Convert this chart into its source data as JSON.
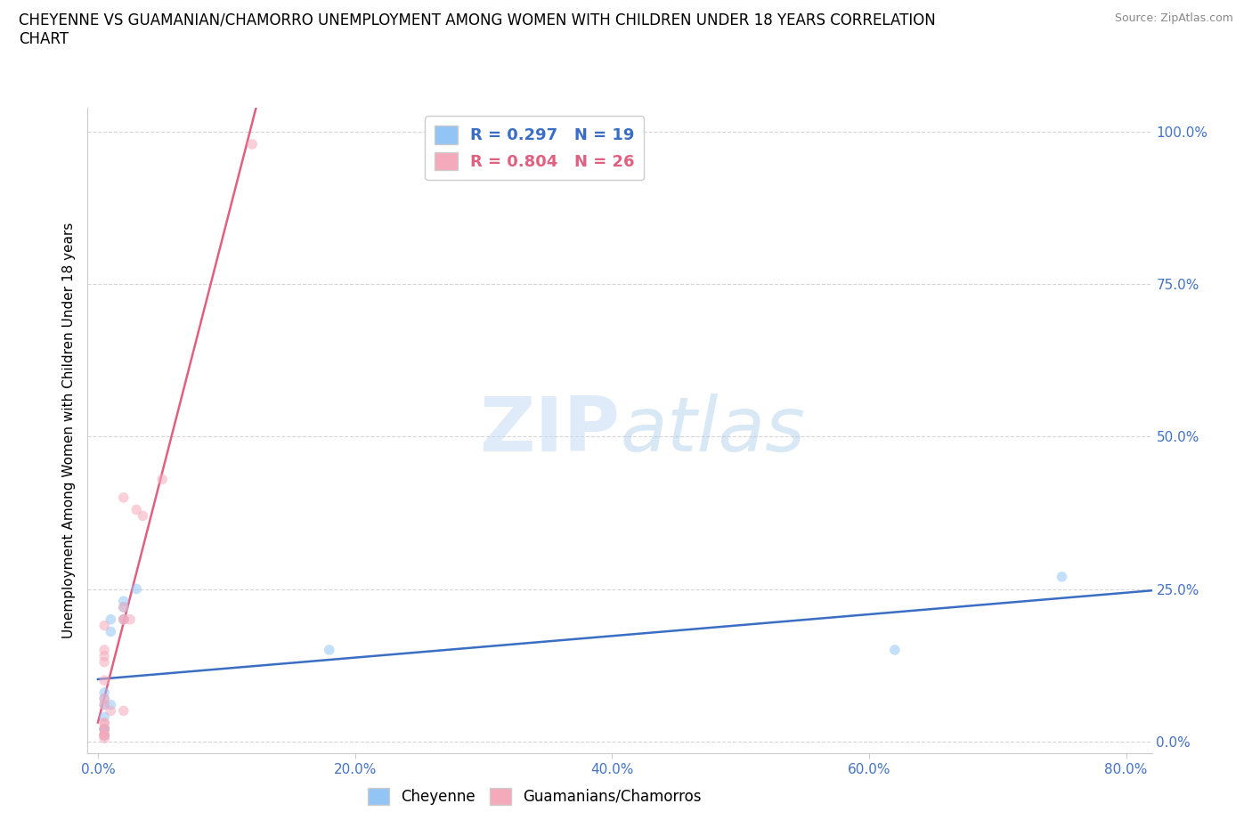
{
  "title_line1": "CHEYENNE VS GUAMANIAN/CHAMORRO UNEMPLOYMENT AMONG WOMEN WITH CHILDREN UNDER 18 YEARS CORRELATION",
  "title_line2": "CHART",
  "source": "Source: ZipAtlas.com",
  "ylabel": "Unemployment Among Women with Children Under 18 years",
  "cheyenne_x": [
    0.005,
    0.005,
    0.005,
    0.005,
    0.005,
    0.005,
    0.005,
    0.005,
    0.005,
    0.01,
    0.01,
    0.01,
    0.02,
    0.02,
    0.02,
    0.03,
    0.18,
    0.62,
    0.75
  ],
  "cheyenne_y": [
    0.02,
    0.02,
    0.04,
    0.06,
    0.07,
    0.08,
    0.02,
    0.01,
    0.01,
    0.2,
    0.18,
    0.06,
    0.2,
    0.22,
    0.23,
    0.25,
    0.15,
    0.15,
    0.27
  ],
  "guamanian_x": [
    0.005,
    0.005,
    0.005,
    0.005,
    0.005,
    0.005,
    0.005,
    0.005,
    0.005,
    0.005,
    0.005,
    0.005,
    0.005,
    0.005,
    0.005,
    0.01,
    0.02,
    0.02,
    0.02,
    0.02,
    0.02,
    0.025,
    0.03,
    0.035,
    0.05,
    0.12
  ],
  "guamanian_y": [
    0.005,
    0.01,
    0.01,
    0.01,
    0.02,
    0.02,
    0.03,
    0.03,
    0.06,
    0.07,
    0.1,
    0.13,
    0.14,
    0.15,
    0.19,
    0.05,
    0.05,
    0.2,
    0.2,
    0.22,
    0.4,
    0.2,
    0.38,
    0.37,
    0.43,
    0.98
  ],
  "cheyenne_color": "#92C5F5",
  "guamanian_color": "#F5AABB",
  "trend_cheyenne_color": "#3A6EC4",
  "trend_guamanian_color": "#E06080",
  "cheyenne_R": 0.297,
  "cheyenne_N": 19,
  "guamanian_R": 0.804,
  "guamanian_N": 26,
  "xlim": [
    -0.008,
    0.82
  ],
  "ylim": [
    -0.02,
    1.04
  ],
  "xticks": [
    0.0,
    0.2,
    0.4,
    0.6,
    0.8
  ],
  "yticks": [
    0.0,
    0.25,
    0.5,
    0.75,
    1.0
  ],
  "xtick_labels": [
    "0.0%",
    "20.0%",
    "40.0%",
    "60.0%",
    "80.0%"
  ],
  "ytick_labels": [
    "0.0%",
    "25.0%",
    "50.0%",
    "75.0%",
    "100.0%"
  ],
  "background_color": "#FFFFFF",
  "watermark_zip": "ZIP",
  "watermark_atlas": "atlas",
  "scatter_size": 70,
  "scatter_alpha": 0.55
}
